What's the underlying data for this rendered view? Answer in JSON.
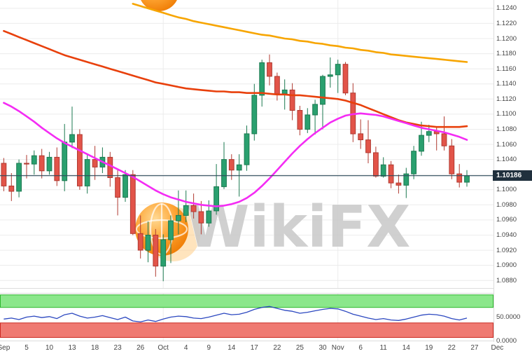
{
  "watermark": {
    "brand": "WikiFX"
  },
  "axis": {
    "y_ticks": [
      "1.1240",
      "1.1220",
      "1.1200",
      "1.1180",
      "1.1160",
      "1.1140",
      "1.1120",
      "1.1100",
      "1.1080",
      "1.1060",
      "1.1040",
      "1.1020",
      "1.1000",
      "1.0980",
      "1.0960",
      "1.0940",
      "1.0920",
      "1.0900",
      "1.0880"
    ],
    "last_price_label": "1.10186",
    "sub_ticks": [
      {
        "text": "50.0000",
        "value": 50
      },
      {
        "text": "0.0000",
        "value": 0
      }
    ]
  },
  "colors": {
    "up_fill": "#2aa06f",
    "up_stroke": "#1b7a50",
    "down_fill": "#e25449",
    "down_stroke": "#b03a31",
    "grid": "#ececec",
    "border": "#dcdcdc",
    "price_line": "#2d4a5a",
    "tag_bg": "#20303d",
    "tag_text": "#ffffff"
  },
  "chart_data": {
    "type": "candlestick",
    "y_range": [
      1.087,
      1.1251
    ],
    "last_price": 1.10186,
    "month_grid_slots": [
      21,
      44
    ],
    "x_labels": [
      {
        "t": "Sep",
        "s": 0
      },
      {
        "t": "5",
        "s": 3
      },
      {
        "t": "10",
        "s": 6
      },
      {
        "t": "13",
        "s": 9
      },
      {
        "t": "18",
        "s": 12
      },
      {
        "t": "23",
        "s": 15
      },
      {
        "t": "26",
        "s": 18
      },
      {
        "t": "Oct",
        "s": 21
      },
      {
        "t": "4",
        "s": 24
      },
      {
        "t": "9",
        "s": 27
      },
      {
        "t": "14",
        "s": 30
      },
      {
        "t": "17",
        "s": 33
      },
      {
        "t": "22",
        "s": 36
      },
      {
        "t": "25",
        "s": 39
      },
      {
        "t": "30",
        "s": 42
      },
      {
        "t": "Nov",
        "s": 44
      },
      {
        "t": "6",
        "s": 47
      },
      {
        "t": "11",
        "s": 50
      },
      {
        "t": "14",
        "s": 53
      },
      {
        "t": "19",
        "s": 56
      },
      {
        "t": "22",
        "s": 59
      },
      {
        "t": "27",
        "s": 62
      },
      {
        "t": "Dec",
        "s": 65
      }
    ],
    "candles": [
      [
        1.1035,
        1.1042,
        1.0998,
        1.1005
      ],
      [
        1.1005,
        1.1022,
        1.0985,
        1.0998
      ],
      [
        1.0998,
        1.104,
        1.099,
        1.1035
      ],
      [
        1.1035,
        1.1046,
        1.1015,
        1.1034
      ],
      [
        1.1034,
        1.1052,
        1.102,
        1.1045
      ],
      [
        1.1045,
        1.1054,
        1.1015,
        1.1025
      ],
      [
        1.1025,
        1.105,
        1.102,
        1.1043
      ],
      [
        1.1043,
        1.1056,
        1.1005,
        1.1012
      ],
      [
        1.1012,
        1.1087,
        1.0998,
        1.1063
      ],
      [
        1.1063,
        1.111,
        1.1055,
        1.1073
      ],
      [
        1.1073,
        1.108,
        1.1,
        1.1005
      ],
      [
        1.1005,
        1.1048,
        1.0995,
        1.104
      ],
      [
        1.104,
        1.1058,
        1.1013,
        1.103
      ],
      [
        1.103,
        1.1056,
        1.1022,
        1.1043
      ],
      [
        1.1043,
        1.105,
        1.1004,
        1.1016
      ],
      [
        1.1016,
        1.1026,
        1.0966,
        1.099
      ],
      [
        1.099,
        1.1026,
        1.0984,
        1.102
      ],
      [
        1.102,
        1.1026,
        1.094,
        1.0942
      ],
      [
        1.0942,
        1.0966,
        1.0909,
        1.092
      ],
      [
        1.092,
        1.0958,
        1.0904,
        1.094
      ],
      [
        1.094,
        1.0948,
        1.0885,
        1.0899
      ],
      [
        1.0899,
        1.0941,
        1.0879,
        1.0934
      ],
      [
        1.0934,
        1.0966,
        1.0903,
        1.0959
      ],
      [
        1.0959,
        1.0999,
        1.0941,
        1.0966
      ],
      [
        1.0966,
        1.0999,
        1.0957,
        1.0979
      ],
      [
        1.0979,
        1.0995,
        1.0962,
        1.0971
      ],
      [
        1.0971,
        1.0985,
        1.0941,
        1.0956
      ],
      [
        1.0956,
        1.0986,
        1.0951,
        1.0972
      ],
      [
        1.0972,
        1.1034,
        1.0967,
        1.1004
      ],
      [
        1.1004,
        1.1063,
        1.1001,
        1.104
      ],
      [
        1.104,
        1.1047,
        1.1013,
        1.1026
      ],
      [
        1.1026,
        1.1047,
        1.0991,
        1.1033
      ],
      [
        1.1033,
        1.1085,
        1.1025,
        1.1074
      ],
      [
        1.1074,
        1.114,
        1.1065,
        1.1125
      ],
      [
        1.1125,
        1.1172,
        1.111,
        1.1168
      ],
      [
        1.1168,
        1.1179,
        1.1138,
        1.115
      ],
      [
        1.115,
        1.1155,
        1.1118,
        1.1127
      ],
      [
        1.1127,
        1.1146,
        1.1106,
        1.1132
      ],
      [
        1.1132,
        1.1141,
        1.1092,
        1.1105
      ],
      [
        1.1105,
        1.1111,
        1.1072,
        1.108
      ],
      [
        1.108,
        1.1108,
        1.1075,
        1.1099
      ],
      [
        1.1099,
        1.1119,
        1.1073,
        1.1113
      ],
      [
        1.1113,
        1.1152,
        1.108,
        1.115
      ],
      [
        1.115,
        1.1175,
        1.1135,
        1.1152
      ],
      [
        1.1152,
        1.1172,
        1.1128,
        1.1166
      ],
      [
        1.1166,
        1.1169,
        1.1125,
        1.1128
      ],
      [
        1.1128,
        1.1141,
        1.1063,
        1.1074
      ],
      [
        1.1074,
        1.1093,
        1.1054,
        1.1066
      ],
      [
        1.1066,
        1.1092,
        1.1035,
        1.1049
      ],
      [
        1.1049,
        1.1057,
        1.1016,
        1.1018
      ],
      [
        1.1018,
        1.1043,
        1.1016,
        1.1033
      ],
      [
        1.1033,
        1.1038,
        1.1002,
        1.1009
      ],
      [
        1.1009,
        1.102,
        1.0995,
        1.1006
      ],
      [
        1.1006,
        1.1029,
        1.0989,
        1.1021
      ],
      [
        1.1021,
        1.1058,
        1.1014,
        1.1051
      ],
      [
        1.1051,
        1.109,
        1.1045,
        1.1072
      ],
      [
        1.1072,
        1.1086,
        1.1063,
        1.1077
      ],
      [
        1.1077,
        1.1084,
        1.1052,
        1.1074
      ],
      [
        1.1074,
        1.1097,
        1.1052,
        1.1058
      ],
      [
        1.1058,
        1.1067,
        1.1014,
        1.1021
      ],
      [
        1.1021,
        1.1034,
        1.1003,
        1.101
      ],
      [
        1.101,
        1.1026,
        1.1004,
        1.10186
      ]
    ],
    "moving_averages": [
      {
        "name": "slow-orange",
        "color": "#f7a500",
        "values": [
          null,
          null,
          null,
          null,
          null,
          null,
          null,
          null,
          null,
          null,
          null,
          null,
          null,
          null,
          null,
          null,
          null,
          1.1246,
          1.1243,
          1.124,
          1.1237,
          1.1234,
          1.1231,
          1.1228,
          1.1226,
          1.1223,
          1.1221,
          1.1219,
          1.1217,
          1.1215,
          1.1213,
          1.1211,
          1.1209,
          1.1207,
          1.1205,
          1.1204,
          1.1202,
          1.12,
          1.1199,
          1.1197,
          1.1196,
          1.1194,
          1.1193,
          1.1191,
          1.119,
          1.1188,
          1.1187,
          1.1185,
          1.1184,
          1.1182,
          1.1181,
          1.1179,
          1.1178,
          1.1177,
          1.1176,
          1.1175,
          1.1174,
          1.1173,
          1.1172,
          1.1171,
          1.117,
          1.1169
        ]
      },
      {
        "name": "medium-red",
        "color": "#e8400c",
        "values": [
          1.121,
          1.1206,
          1.1202,
          1.1198,
          1.1194,
          1.119,
          1.1186,
          1.1182,
          1.1178,
          1.1175,
          1.1172,
          1.1169,
          1.1166,
          1.1163,
          1.116,
          1.1157,
          1.1154,
          1.1151,
          1.1148,
          1.1145,
          1.1142,
          1.114,
          1.1138,
          1.1136,
          1.1134,
          1.1133,
          1.1132,
          1.1131,
          1.113,
          1.113,
          1.1129,
          1.1129,
          1.1128,
          1.1128,
          1.1128,
          1.1127,
          1.1126,
          1.1126,
          1.1125,
          1.1125,
          1.1124,
          1.1123,
          1.1122,
          1.1121,
          1.112,
          1.1118,
          1.1115,
          1.1112,
          1.1108,
          1.1104,
          1.11,
          1.1096,
          1.1092,
          1.1089,
          1.1087,
          1.1085,
          1.1084,
          1.1083,
          1.1083,
          1.1083,
          1.1083,
          1.1084
        ]
      },
      {
        "name": "fast-magenta",
        "color": "#f42cf4",
        "values": [
          1.1115,
          1.111,
          1.1104,
          1.1097,
          1.109,
          1.1082,
          1.1075,
          1.1068,
          1.1062,
          1.1057,
          1.1052,
          1.1047,
          1.1042,
          1.1037,
          1.1032,
          1.1027,
          1.1022,
          1.1017,
          1.1011,
          1.1005,
          1.0999,
          1.0994,
          1.099,
          1.0987,
          1.0984,
          1.0982,
          1.098,
          1.0979,
          1.0978,
          1.0979,
          1.0981,
          1.0984,
          1.0989,
          1.0996,
          1.1005,
          1.1015,
          1.1026,
          1.1037,
          1.1048,
          1.1058,
          1.1067,
          1.1075,
          1.1082,
          1.1089,
          1.1094,
          1.1098,
          1.11,
          1.1101,
          1.11,
          1.1099,
          1.1097,
          1.1094,
          1.1091,
          1.1088,
          1.1085,
          1.1082,
          1.108,
          1.1078,
          1.1076,
          1.1073,
          1.107,
          1.1066
        ]
      }
    ],
    "oscillator": {
      "range": [
        0,
        100
      ],
      "line_color": "#2c48c0",
      "bands": [
        {
          "from": 70,
          "to": 96,
          "fill": "#8be78b",
          "stroke": "#2eb82e"
        },
        {
          "from": 8,
          "to": 38,
          "fill": "#ef7a72",
          "stroke": "#cc2a22"
        }
      ],
      "values": [
        46,
        48,
        45,
        50,
        52,
        49,
        51,
        47,
        55,
        58,
        52,
        48,
        50,
        53,
        49,
        45,
        50,
        42,
        40,
        44,
        41,
        46,
        50,
        52,
        51,
        48,
        47,
        50,
        54,
        58,
        55,
        56,
        60,
        66,
        70,
        72,
        68,
        64,
        62,
        58,
        60,
        63,
        66,
        68,
        67,
        62,
        56,
        52,
        48,
        45,
        47,
        44,
        43,
        46,
        50,
        54,
        56,
        55,
        52,
        47,
        44,
        48
      ]
    }
  }
}
